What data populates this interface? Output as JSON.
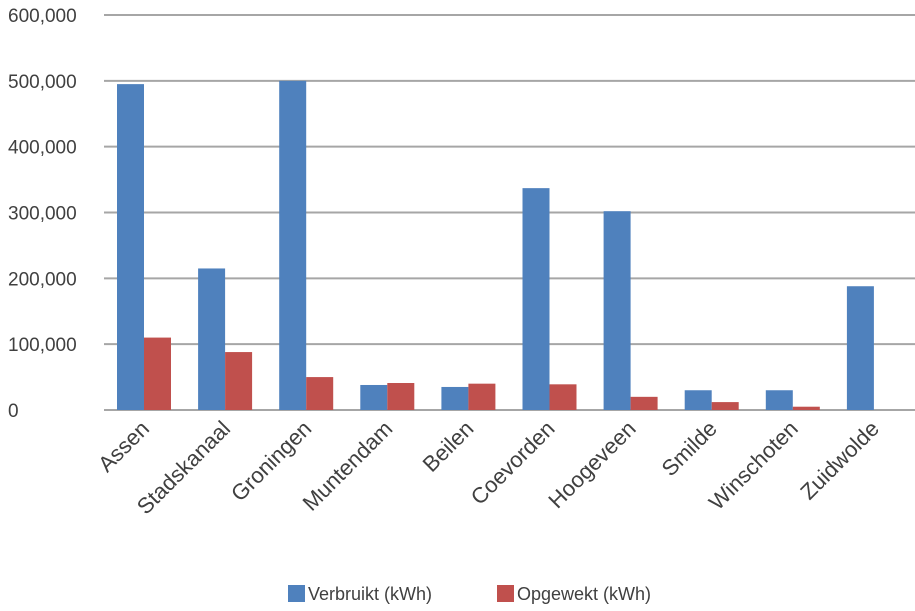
{
  "chart_data": {
    "type": "bar",
    "categories": [
      "Assen",
      "Stadskanaal",
      "Groningen",
      "Muntendam",
      "Beilen",
      "Coevorden",
      "Hoogeveen",
      "Smilde",
      "Winschoten",
      "Zuidwolde"
    ],
    "series": [
      {
        "name": "Verbruikt (kWh)",
        "color": "#4f81bd",
        "values": [
          495000,
          215000,
          500000,
          38000,
          35000,
          337000,
          302000,
          30000,
          30000,
          188000
        ]
      },
      {
        "name": "Opgewekt (kWh)",
        "color": "#c0504d",
        "values": [
          110000,
          88000,
          50000,
          41000,
          40000,
          39000,
          20000,
          12000,
          5000,
          0
        ]
      }
    ],
    "y_ticks": [
      "0",
      "100,000",
      "200,000",
      "300,000",
      "400,000",
      "500,000",
      "600,000"
    ],
    "ylim": [
      0,
      600000
    ],
    "grid": true,
    "legend_position": "bottom",
    "title": "",
    "xlabel": "",
    "ylabel": ""
  }
}
